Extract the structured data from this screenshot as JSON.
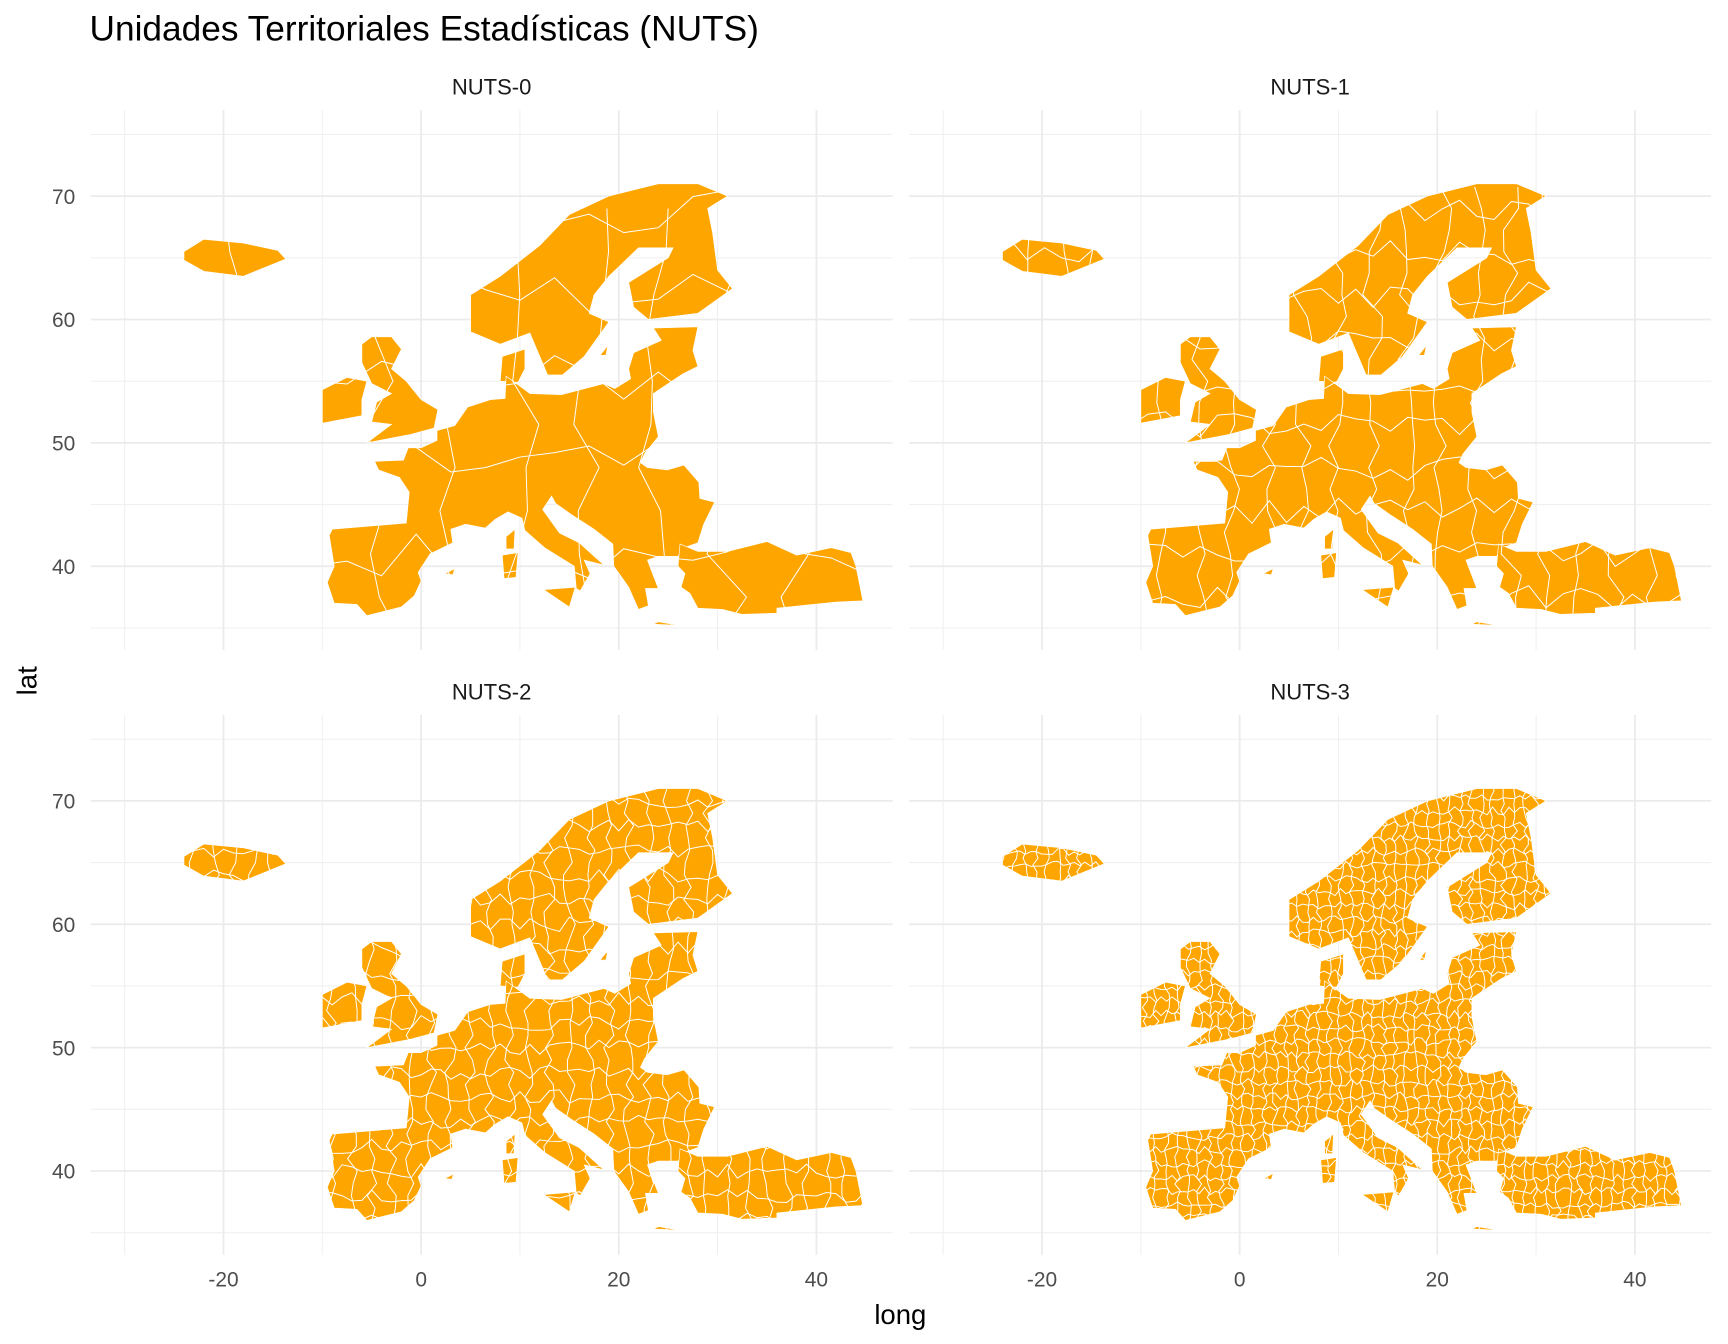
{
  "chart_data": {
    "type": "map",
    "title": "Unidades Territoriales Estadísticas (NUTS)",
    "xlabel": "long",
    "ylabel": "lat",
    "xlim": [
      -32,
      49
    ],
    "ylim": [
      33,
      77
    ],
    "x_ticks": [
      -20,
      0,
      20,
      40
    ],
    "y_ticks": [
      40,
      50,
      60,
      70
    ],
    "grid": true,
    "fill_color": "#FFA500",
    "border_color": "#FFFFFF",
    "facets": [
      {
        "label": "NUTS-0",
        "level": 0
      },
      {
        "label": "NUTS-1",
        "level": 1
      },
      {
        "label": "NUTS-2",
        "level": 2
      },
      {
        "label": "NUTS-3",
        "level": 3
      }
    ]
  }
}
